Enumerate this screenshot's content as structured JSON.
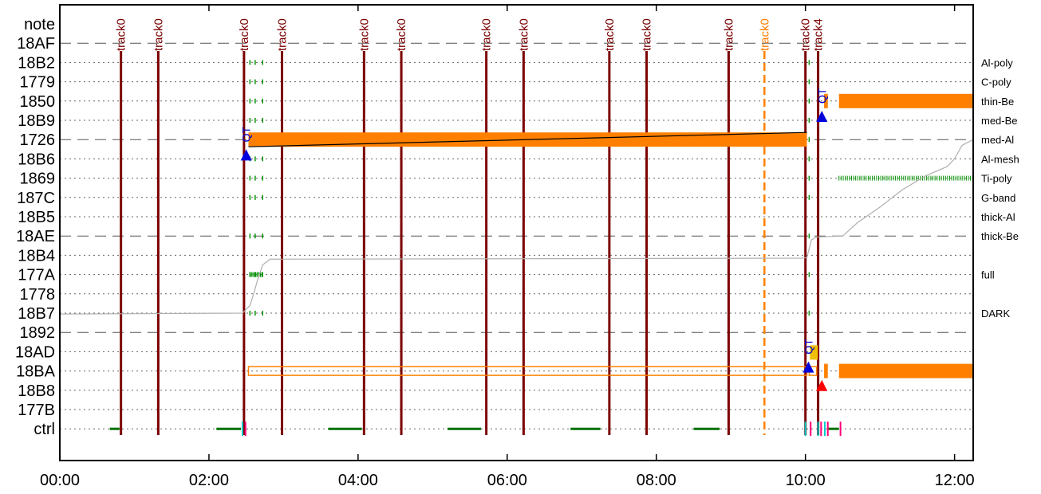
{
  "chart_data": {
    "type": "timeline",
    "x_ticks": [
      "00:00",
      "02:00",
      "04:00",
      "06:00",
      "08:00",
      "10:00",
      "12:00"
    ],
    "xlim_hours": [
      0,
      12.25
    ],
    "rows": [
      "note",
      "18AF",
      "18B2",
      "1779",
      "1850",
      "18B9",
      "1726",
      "18B6",
      "1869",
      "187C",
      "18B5",
      "18AE",
      "18B4",
      "177A",
      "1778",
      "18B7",
      "1892",
      "18AD",
      "18BA",
      "18B8",
      "177B",
      "ctrl"
    ],
    "dashed_rows": [
      "18AF",
      "1726",
      "18AE",
      "1892"
    ],
    "filter_labels": [
      {
        "row": "18B2",
        "text": "Al-poly"
      },
      {
        "row": "1779",
        "text": "C-poly"
      },
      {
        "row": "1850",
        "text": "thin-Be"
      },
      {
        "row": "18B9",
        "text": "med-Be"
      },
      {
        "row": "1726",
        "text": "med-Al"
      },
      {
        "row": "18B6",
        "text": "Al-mesh"
      },
      {
        "row": "1869",
        "text": "Ti-poly"
      },
      {
        "row": "187C",
        "text": "G-band"
      },
      {
        "row": "18B5",
        "text": "thick-Al"
      },
      {
        "row": "18AE",
        "text": "thick-Be"
      },
      {
        "row": "177A",
        "text": "full"
      },
      {
        "row": "18B7",
        "text": "DARK"
      }
    ],
    "track_markers": [
      {
        "t": 0.82,
        "label": "track0",
        "color": "#7b0000"
      },
      {
        "t": 1.32,
        "label": "track0",
        "color": "#7b0000"
      },
      {
        "t": 2.47,
        "label": "track0",
        "color": "#7b0000"
      },
      {
        "t": 2.98,
        "label": "track0",
        "color": "#7b0000"
      },
      {
        "t": 4.08,
        "label": "track0",
        "color": "#7b0000"
      },
      {
        "t": 4.58,
        "label": "track0",
        "color": "#7b0000"
      },
      {
        "t": 5.72,
        "label": "track0",
        "color": "#7b0000"
      },
      {
        "t": 6.22,
        "label": "track0",
        "color": "#7b0000"
      },
      {
        "t": 7.37,
        "label": "track0",
        "color": "#7b0000"
      },
      {
        "t": 7.87,
        "label": "track0",
        "color": "#7b0000"
      },
      {
        "t": 8.97,
        "label": "track0",
        "color": "#7b0000"
      },
      {
        "t": 9.45,
        "label": "track0",
        "color": "#ff8000"
      },
      {
        "t": 10.0,
        "label": "track0",
        "color": "#7b0000"
      },
      {
        "t": 10.17,
        "label": "track4",
        "color": "#7b0000"
      }
    ],
    "exposures": [
      {
        "row": "1726",
        "start": 2.53,
        "end": 10.02,
        "style": "filled",
        "color": "#ff8000"
      },
      {
        "row": "1850",
        "start": 10.25,
        "end": 10.3,
        "style": "filled",
        "color": "#ff8000"
      },
      {
        "row": "1850",
        "start": 10.45,
        "end": 12.25,
        "style": "filled",
        "color": "#ff8000"
      },
      {
        "row": "18BA",
        "start": 2.53,
        "end": 10.02,
        "style": "outline",
        "color": "#ff8000"
      },
      {
        "row": "18BA",
        "start": 10.05,
        "end": 10.15,
        "style": "outline",
        "color": "#ff8000"
      },
      {
        "row": "18BA",
        "start": 10.25,
        "end": 10.3,
        "style": "filled",
        "color": "#ff8000"
      },
      {
        "row": "18BA",
        "start": 10.45,
        "end": 12.25,
        "style": "filled",
        "color": "#ff8000"
      }
    ],
    "ctrl_segments": [
      {
        "start": 0.67,
        "end": 0.8,
        "color": "#007000"
      },
      {
        "start": 2.1,
        "end": 2.43,
        "color": "#007000"
      },
      {
        "start": 3.6,
        "end": 4.05,
        "color": "#007000"
      },
      {
        "start": 5.2,
        "end": 5.65,
        "color": "#007000"
      },
      {
        "start": 6.85,
        "end": 7.25,
        "color": "#007000"
      },
      {
        "start": 8.5,
        "end": 8.85,
        "color": "#007000"
      },
      {
        "start": 10.3,
        "end": 10.45,
        "color": "#007000"
      }
    ],
    "ctrl_ticks": [
      {
        "t": 2.45,
        "color": "#00cccc"
      },
      {
        "t": 2.49,
        "color": "#ff0077"
      },
      {
        "t": 10.0,
        "color": "#00cccc"
      },
      {
        "t": 10.07,
        "color": "#ff0077"
      },
      {
        "t": 10.17,
        "color": "#00cccc"
      },
      {
        "t": 10.21,
        "color": "#ff0077"
      },
      {
        "t": 10.26,
        "color": "#00cccc"
      },
      {
        "t": 10.3,
        "color": "#ff0077"
      },
      {
        "t": 10.47,
        "color": "#ff0077"
      }
    ],
    "qt_markers": [
      {
        "t": 2.5,
        "row": "18B6",
        "label": "QT",
        "color": "#0000dd"
      },
      {
        "t": 10.22,
        "row": "18B9",
        "label": "QT",
        "color": "#0000dd"
      },
      {
        "t": 10.04,
        "row": "18BA",
        "label": "QT",
        "color": "#0000dd"
      }
    ],
    "red_markers": [
      {
        "t": 10.22,
        "row": "18B8",
        "color": "#ff0000"
      }
    ],
    "gray_line": [
      [
        0,
        15.05
      ],
      [
        2.45,
        15.0
      ],
      [
        2.55,
        14.6
      ],
      [
        2.6,
        14.0
      ],
      [
        2.65,
        13.3
      ],
      [
        2.72,
        12.5
      ],
      [
        2.82,
        12.2
      ],
      [
        6.0,
        12.18
      ],
      [
        9.95,
        12.15
      ],
      [
        10.02,
        12.12
      ],
      [
        10.08,
        11.2
      ],
      [
        10.15,
        11.05
      ],
      [
        10.5,
        11.0
      ],
      [
        10.7,
        10.3
      ],
      [
        11.0,
        9.5
      ],
      [
        11.3,
        8.6
      ],
      [
        11.6,
        7.9
      ],
      [
        11.9,
        7.4
      ],
      [
        12.0,
        7.0
      ],
      [
        12.1,
        6.3
      ],
      [
        12.25,
        6.0
      ]
    ]
  }
}
